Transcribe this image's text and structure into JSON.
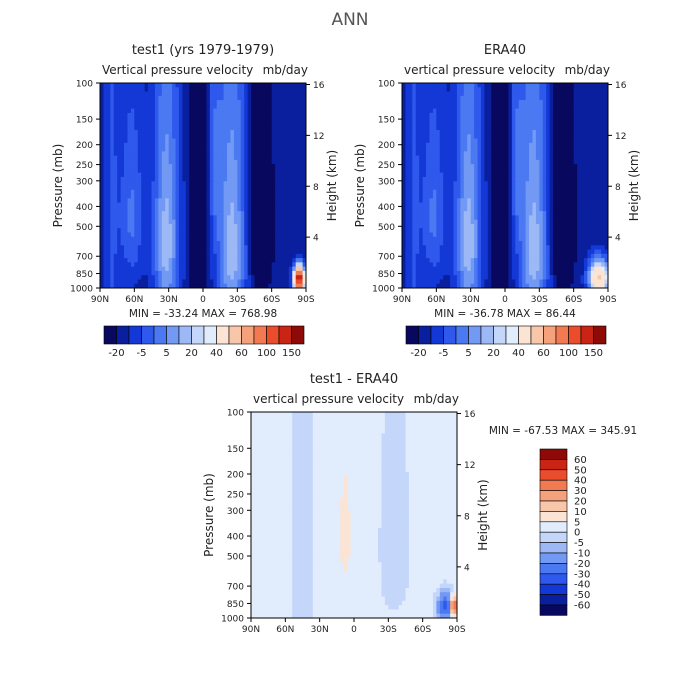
{
  "page_title": "ANN",
  "colors": {
    "blues": [
      "#08085e",
      "#0a1f9e",
      "#1338d6",
      "#2f58ec",
      "#4a79f2",
      "#7299f4",
      "#9cb9f6",
      "#c4d6fa",
      "#e1ecfc"
    ],
    "reds": [
      "#fbe4d4",
      "#f8c6a8",
      "#f5a27c",
      "#f27a52",
      "#e94d2c",
      "#c92414",
      "#8e0a06"
    ]
  },
  "panels": [
    {
      "title": "test1 (yrs 1979-1979)",
      "subtitle_left": "Vertical pressure velocity",
      "subtitle_right": "mb/day",
      "minmax": "MIN = -33.24   MAX = 768.98"
    },
    {
      "title": "ERA40",
      "subtitle_left": "vertical pressure velocity",
      "subtitle_right": "mb/day",
      "minmax": "MIN = -36.78   MAX = 86.44"
    },
    {
      "title": "test1 - ERA40",
      "subtitle_left": "vertical pressure velocity",
      "subtitle_right": "mb/day",
      "minmax": "MIN = -67.53   MAX = 345.91"
    }
  ],
  "chart_data": [
    {
      "type": "heatmap",
      "title": "test1 (yrs 1979-1979)",
      "ylabel": "Pressure (mb)",
      "y2label": "Height (km)",
      "x_ticks": [
        "90N",
        "60N",
        "30N",
        "0",
        "30S",
        "60S",
        "90S"
      ],
      "y_ticks": [
        "100",
        "150",
        "200",
        "250",
        "300",
        "400",
        "500",
        "700",
        "850",
        "1000"
      ],
      "y_tick_labels": [
        "100",
        "150",
        "200",
        "250",
        "300",
        "400",
        "500",
        "700",
        "850",
        "1000"
      ],
      "y2_ticks": [
        "16",
        "12",
        "8",
        "4"
      ],
      "min": -33.24,
      "max": 768.98,
      "colorbar_labels": [
        "-20",
        "-5",
        "5",
        "20",
        "40",
        "60",
        "100",
        "150"
      ]
    },
    {
      "type": "heatmap",
      "title": "ERA40",
      "ylabel": "Pressure (mb)",
      "y2label": "Height (km)",
      "x_ticks": [
        "90N",
        "60N",
        "30N",
        "0",
        "30S",
        "60S",
        "90S"
      ],
      "y_tick_labels": [
        "100",
        "150",
        "200",
        "250",
        "300",
        "400",
        "500",
        "700",
        "850",
        "1000"
      ],
      "y2_ticks": [
        "16",
        "12",
        "8",
        "4"
      ],
      "min": -36.78,
      "max": 86.44,
      "colorbar_labels": [
        "-20",
        "-5",
        "5",
        "20",
        "40",
        "60",
        "100",
        "150"
      ]
    },
    {
      "type": "heatmap",
      "title": "test1 - ERA40",
      "ylabel": "Pressure (mb)",
      "y2label": "Height (km)",
      "x_ticks": [
        "90N",
        "60N",
        "30N",
        "0",
        "30S",
        "60S",
        "90S"
      ],
      "y_tick_labels": [
        "100",
        "150",
        "200",
        "250",
        "300",
        "400",
        "500",
        "700",
        "850",
        "1000"
      ],
      "y2_ticks": [
        "16",
        "12",
        "8",
        "4"
      ],
      "min": -67.53,
      "max": 345.91,
      "colorbar_labels": [
        "60",
        "50",
        "40",
        "30",
        "20",
        "10",
        "5",
        "0",
        "-5",
        "-10",
        "-20",
        "-30",
        "-40",
        "-50",
        "-60"
      ]
    }
  ]
}
